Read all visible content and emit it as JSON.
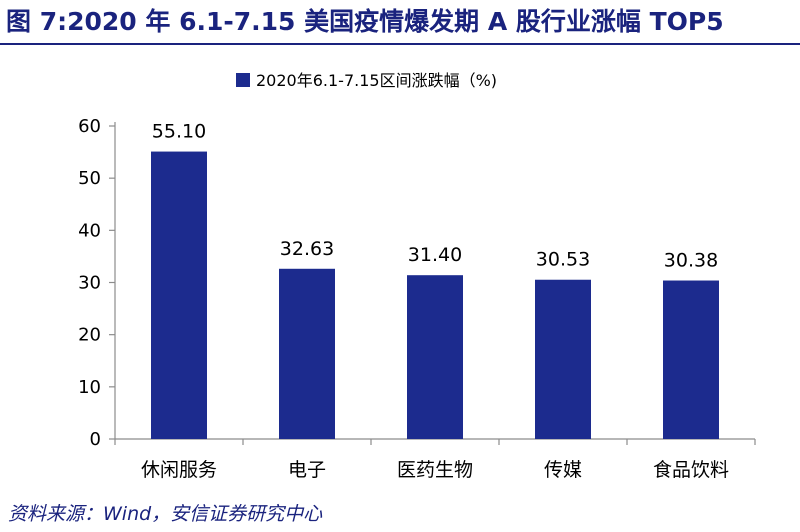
{
  "page": {
    "title": "图 7:2020 年 6.1-7.15 美国疫情爆发期 A 股行业涨幅 TOP5",
    "source": "资料来源：Wind，安信证券研究中心"
  },
  "colors": {
    "bar": "#1c2b8e",
    "title": "#1a237e",
    "axis": "#8c8c8c"
  },
  "chart_data": {
    "type": "bar",
    "categories": [
      "休闲服务",
      "电子",
      "医药生物",
      "传媒",
      "食品饮料"
    ],
    "series": [
      {
        "name": "2020年6.1-7.15区间涨跌幅（%)",
        "values": [
          55.1,
          32.63,
          31.4,
          30.53,
          30.38
        ]
      }
    ],
    "data_labels": [
      "55.10",
      "32.63",
      "31.40",
      "30.53",
      "30.38"
    ],
    "ylim": [
      0,
      60
    ],
    "yticks": [
      0,
      10,
      20,
      30,
      40,
      50,
      60
    ],
    "legend_position": "top-center",
    "grid": false
  }
}
